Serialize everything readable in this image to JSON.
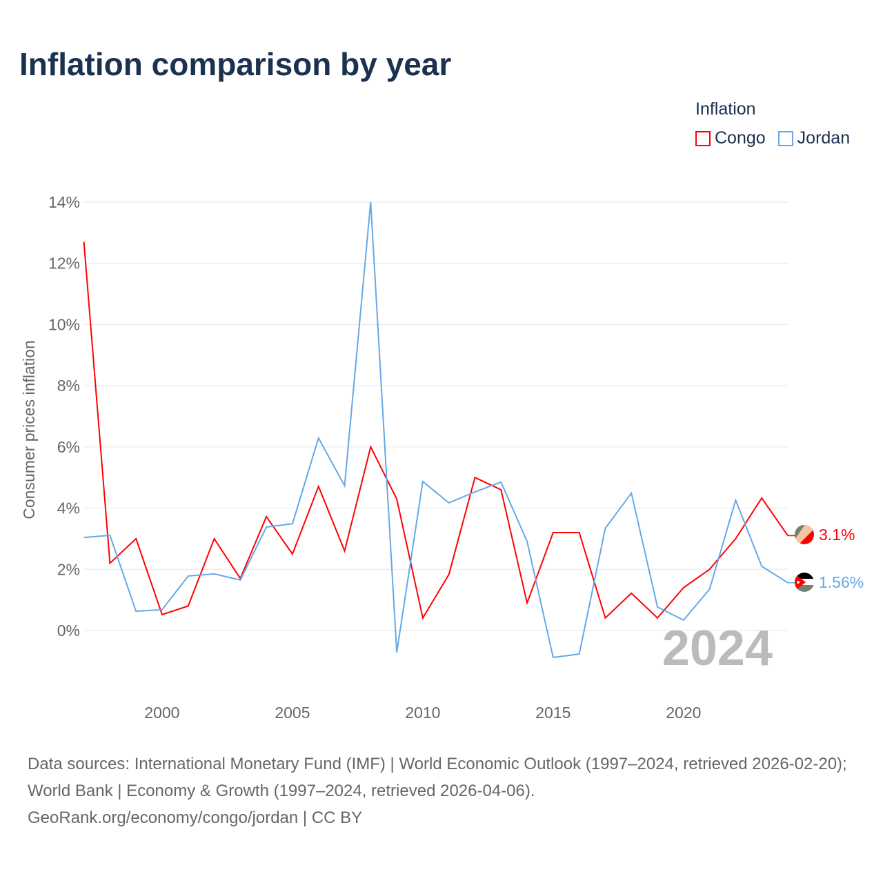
{
  "title": "Inflation comparison by year",
  "legend": {
    "title": "Inflation",
    "items": [
      {
        "label": "Congo",
        "color": "#ff0000"
      },
      {
        "label": "Jordan",
        "color": "#64a8e8"
      }
    ]
  },
  "year_watermark": "2024",
  "footer": {
    "line1": "Data sources: International Monetary Fund (IMF) | World Economic Outlook (1997–2024, retrieved 2026-02-20); World Bank | Economy & Growth (1997–2024, retrieved 2026-04-06).",
    "line2": "GeoRank.org/economy/congo/jordan | CC BY"
  },
  "chart_data": {
    "type": "line",
    "title": "Inflation comparison by year",
    "xlabel": "",
    "ylabel": "Consumer prices inflation",
    "x": [
      1997,
      1998,
      1999,
      2000,
      2001,
      2002,
      2003,
      2004,
      2005,
      2006,
      2007,
      2008,
      2009,
      2010,
      2011,
      2012,
      2013,
      2014,
      2015,
      2016,
      2017,
      2018,
      2019,
      2020,
      2021,
      2022,
      2023,
      2024
    ],
    "xlim": [
      1997,
      2024
    ],
    "ylim": [
      -2.1,
      14
    ],
    "xticks": [
      2000,
      2005,
      2010,
      2015,
      2020
    ],
    "yticks": [
      0,
      2,
      4,
      6,
      8,
      10,
      12,
      14
    ],
    "ytick_labels": [
      "0%",
      "2%",
      "4%",
      "6%",
      "8%",
      "10%",
      "12%",
      "14%"
    ],
    "grid": true,
    "legend_position": "top-right",
    "series": [
      {
        "name": "Congo",
        "color": "#ff0000",
        "end_label": "3.1%",
        "values": [
          12.7,
          2.2,
          3.0,
          0.52,
          0.8,
          3.0,
          1.7,
          3.72,
          2.5,
          4.71,
          2.6,
          6.0,
          4.3,
          0.41,
          1.83,
          5.0,
          4.6,
          0.9,
          3.2,
          3.2,
          0.41,
          1.22,
          0.41,
          1.4,
          2.0,
          3.0,
          4.33,
          3.1
        ]
      },
      {
        "name": "Jordan",
        "color": "#64a8e8",
        "end_label": "1.56%",
        "values": [
          3.04,
          3.11,
          0.63,
          0.68,
          1.78,
          1.85,
          1.65,
          3.38,
          3.49,
          6.29,
          4.73,
          14.0,
          -0.72,
          4.87,
          4.17,
          4.53,
          4.85,
          2.91,
          -0.88,
          -0.77,
          3.34,
          4.49,
          0.77,
          0.34,
          1.35,
          4.26,
          2.1,
          1.56
        ]
      }
    ]
  }
}
